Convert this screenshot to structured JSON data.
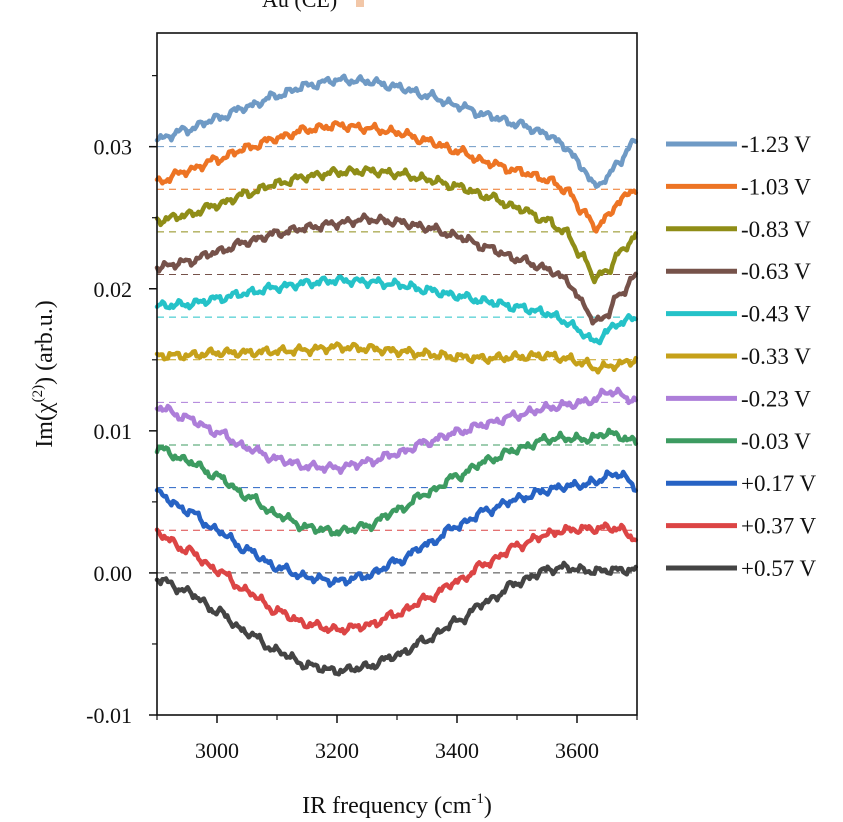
{
  "chart_data": {
    "type": "line",
    "top_text": "Au (CE)",
    "xlabel": {
      "main": "IR frequency (cm",
      "sup": "-1",
      "close": ")"
    },
    "ylabel": {
      "main": "Im(χ",
      "sup": "(2)",
      "close": ") (arb.u.)"
    },
    "xlim": [
      2900,
      3700
    ],
    "ylim": [
      -0.01,
      0.038
    ],
    "x_ticks": [
      3000,
      3200,
      3400,
      3600
    ],
    "x_tick_labels": [
      "3000",
      "3200",
      "3400",
      "3600"
    ],
    "y_ticks": [
      -0.01,
      0.0,
      0.01,
      0.02,
      0.03
    ],
    "y_tick_labels": [
      "-0.01",
      "0.00",
      "0.01",
      "0.02",
      "0.03"
    ],
    "legend_position": "right",
    "baselines_dashed": true,
    "x": [
      2900,
      2950,
      3000,
      3050,
      3100,
      3150,
      3200,
      3250,
      3300,
      3350,
      3400,
      3450,
      3500,
      3550,
      3580,
      3610,
      3630,
      3650,
      3670,
      3700
    ],
    "series": [
      {
        "name": "-1.23 V",
        "color": "#6f9ac5",
        "baseline": 0.03,
        "values": [
          0.0305,
          0.0312,
          0.032,
          0.0328,
          0.0336,
          0.0343,
          0.0347,
          0.0346,
          0.0342,
          0.0336,
          0.0329,
          0.0322,
          0.0316,
          0.0309,
          0.03,
          0.0285,
          0.0272,
          0.0278,
          0.029,
          0.0305
        ]
      },
      {
        "name": "-1.03 V",
        "color": "#ed7424",
        "baseline": 0.027,
        "values": [
          0.0275,
          0.0283,
          0.0291,
          0.0299,
          0.0306,
          0.0312,
          0.0315,
          0.0313,
          0.031,
          0.0304,
          0.0297,
          0.0289,
          0.0283,
          0.0277,
          0.027,
          0.0255,
          0.0243,
          0.025,
          0.0262,
          0.0271
        ]
      },
      {
        "name": "-0.83 V",
        "color": "#8f8d17",
        "baseline": 0.024,
        "values": [
          0.0248,
          0.0252,
          0.0259,
          0.0267,
          0.0274,
          0.0279,
          0.0282,
          0.0283,
          0.0281,
          0.0277,
          0.0272,
          0.0265,
          0.0257,
          0.0248,
          0.024,
          0.0222,
          0.0208,
          0.0212,
          0.0225,
          0.0238
        ]
      },
      {
        "name": "-0.63 V",
        "color": "#76524a",
        "baseline": 0.021,
        "values": [
          0.0215,
          0.0219,
          0.0226,
          0.0233,
          0.0239,
          0.0243,
          0.0246,
          0.0249,
          0.0247,
          0.0243,
          0.0237,
          0.0229,
          0.0221,
          0.0214,
          0.0207,
          0.019,
          0.0176,
          0.0182,
          0.0196,
          0.0209
        ]
      },
      {
        "name": "-0.43 V",
        "color": "#25c2c8",
        "baseline": 0.018,
        "values": [
          0.0188,
          0.0189,
          0.0193,
          0.0197,
          0.0201,
          0.0204,
          0.0206,
          0.0205,
          0.0203,
          0.0199,
          0.0195,
          0.0191,
          0.0187,
          0.0183,
          0.0177,
          0.0169,
          0.0162,
          0.017,
          0.0176,
          0.018
        ]
      },
      {
        "name": "-0.33 V",
        "color": "#c6a11a",
        "baseline": 0.015,
        "values": [
          0.0153,
          0.0153,
          0.0155,
          0.0155,
          0.0156,
          0.0157,
          0.0159,
          0.0158,
          0.0156,
          0.0154,
          0.0152,
          0.0151,
          0.0152,
          0.0153,
          0.0151,
          0.0148,
          0.0144,
          0.0145,
          0.0147,
          0.015
        ]
      },
      {
        "name": "-0.23 V",
        "color": "#ad7ed9",
        "baseline": 0.012,
        "values": [
          0.0117,
          0.0109,
          0.0099,
          0.0088,
          0.008,
          0.0075,
          0.0074,
          0.0078,
          0.0084,
          0.0092,
          0.0099,
          0.0105,
          0.0111,
          0.0116,
          0.0118,
          0.012,
          0.0122,
          0.0128,
          0.0126,
          0.012
        ]
      },
      {
        "name": "-0.03 V",
        "color": "#3d9b61",
        "baseline": 0.009,
        "values": [
          0.0088,
          0.0079,
          0.0068,
          0.0054,
          0.0041,
          0.0032,
          0.0029,
          0.0033,
          0.0044,
          0.0056,
          0.0068,
          0.0079,
          0.0087,
          0.0094,
          0.0095,
          0.0094,
          0.0095,
          0.0099,
          0.0096,
          0.0092
        ]
      },
      {
        "name": "+0.17 V",
        "color": "#2763c4",
        "baseline": 0.006,
        "values": [
          0.0056,
          0.0044,
          0.003,
          0.0016,
          0.0004,
          -0.0003,
          -0.0006,
          -0.0002,
          0.0008,
          0.002,
          0.0033,
          0.0044,
          0.0052,
          0.0058,
          0.0061,
          0.0062,
          0.0064,
          0.0068,
          0.007,
          0.006
        ]
      },
      {
        "name": "+0.37 V",
        "color": "#dc4545",
        "baseline": 0.003,
        "values": [
          0.0028,
          0.0016,
          0.0002,
          -0.0013,
          -0.0027,
          -0.0036,
          -0.004,
          -0.0037,
          -0.0029,
          -0.0018,
          -0.0006,
          0.0007,
          0.0019,
          0.0027,
          0.003,
          0.0031,
          0.0031,
          0.0032,
          0.0031,
          0.0024
        ]
      },
      {
        "name": "+0.57 V",
        "color": "#444444",
        "baseline": 0.0,
        "values": [
          -0.0004,
          -0.0013,
          -0.0027,
          -0.0042,
          -0.0055,
          -0.0065,
          -0.0069,
          -0.0066,
          -0.0058,
          -0.0047,
          -0.0034,
          -0.002,
          -0.0007,
          0.0002,
          0.0004,
          0.0002,
          0.0001,
          0.0002,
          0.0002,
          0.0002
        ]
      }
    ]
  }
}
